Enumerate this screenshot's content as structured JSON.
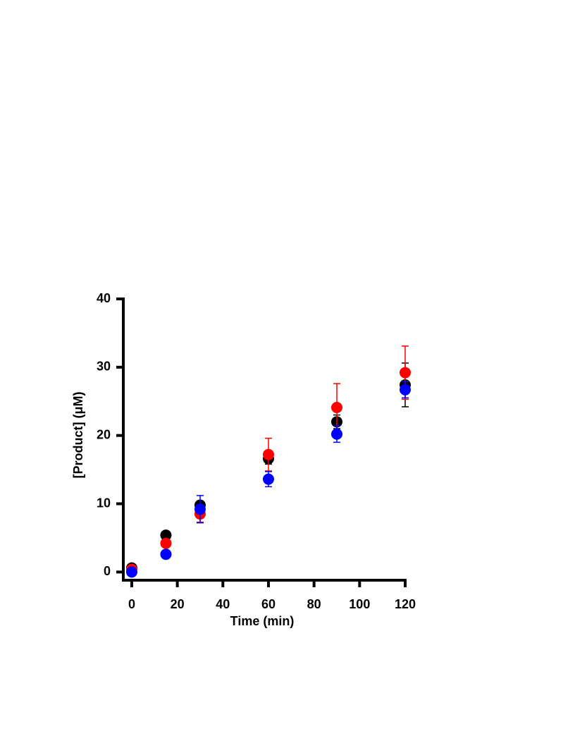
{
  "chart_data": {
    "type": "scatter",
    "x_label": "Time (min)",
    "y_label": "[Product] (μM)",
    "x": [
      0,
      15,
      30,
      60,
      90,
      120
    ],
    "series": [
      {
        "color": "#000000",
        "values": [
          0.6,
          5.4,
          9.8,
          16.6,
          22.0,
          27.4
        ],
        "errors": [
          0.2,
          0.3,
          0.6,
          0.8,
          1.0,
          3.2
        ]
      },
      {
        "color": "#ff0000",
        "values": [
          0.4,
          4.2,
          8.5,
          17.2,
          24.1,
          29.2
        ],
        "errors": [
          0.2,
          0.3,
          1.2,
          2.4,
          3.5,
          3.9
        ]
      },
      {
        "color": "#0000ff",
        "values": [
          0.0,
          2.6,
          9.2,
          13.6,
          20.2,
          26.7
        ],
        "errors": [
          0.1,
          0.3,
          2.0,
          1.1,
          1.2,
          1.2
        ]
      }
    ],
    "xlim": [
      -3.7,
      120
    ],
    "ylim": [
      -1.2,
      40
    ],
    "xticks": [
      0,
      20,
      40,
      60,
      80,
      100,
      120
    ],
    "yticks": [
      0,
      10,
      20,
      30,
      40
    ]
  }
}
